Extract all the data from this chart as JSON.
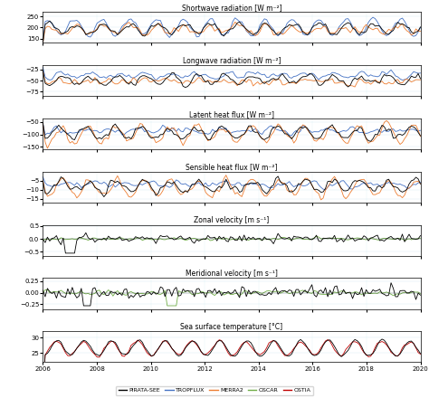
{
  "title_sw": "Shortwave radiation [W m⁻²]",
  "title_lw": "Longwave radiation [W m⁻²]",
  "title_lh": "Latent heat flux [W m⁻²]",
  "title_sh": "Sensible heat flux [W m⁻²]",
  "title_zu": "Zonal velocity [m s⁻¹]",
  "title_mv": "Meridional velocity [m s⁻¹]",
  "title_sst": "Sea surface temperature [°C]",
  "ylim_sw": [
    130,
    270
  ],
  "ylim_lw": [
    -85,
    -15
  ],
  "ylim_lh": [
    -160,
    -35
  ],
  "ylim_sh": [
    -17,
    0
  ],
  "ylim_zu": [
    -0.65,
    0.55
  ],
  "ylim_mv": [
    -0.35,
    0.32
  ],
  "ylim_sst": [
    22,
    32
  ],
  "yticks_sw": [
    150,
    200,
    250
  ],
  "yticks_lw": [
    -75,
    -50,
    -25
  ],
  "yticks_lh": [
    -150,
    -100,
    -50
  ],
  "yticks_sh": [
    -15,
    -10,
    -5
  ],
  "yticks_zu": [
    -0.5,
    0.0,
    0.5
  ],
  "yticks_mv": [
    -0.25,
    0.0,
    0.25
  ],
  "yticks_sst": [
    25,
    30
  ],
  "color_pirata": "#000000",
  "color_tropflux": "#4472c4",
  "color_merra2": "#ed7d31",
  "color_oscar": "#70ad47",
  "color_ostia": "#c00000",
  "legend_labels": [
    "PIRATA-SEE",
    "TROPFLUX",
    "MERRA2",
    "OSCAR",
    "OSTIA"
  ],
  "xmin_year": 2006,
  "xmax_year": 2020,
  "xticks": [
    2006,
    2008,
    2010,
    2012,
    2014,
    2016,
    2018,
    2020
  ]
}
